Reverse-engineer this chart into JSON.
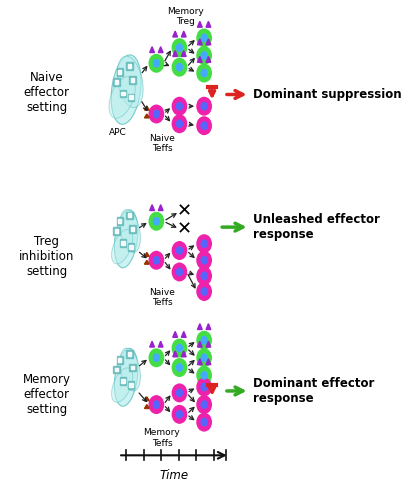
{
  "fig_width": 4.06,
  "fig_height": 4.87,
  "dpi": 100,
  "bg_color": "#ffffff",
  "panel_labels": [
    "Naive\neffector\nsetting",
    "Treg\ninhibition\nsetting",
    "Memory\neffector\nsetting"
  ],
  "outcome_labels": [
    "Dominant suppression",
    "Unleashed effector\nresponse",
    "Dominant effector\nresponse"
  ],
  "outcome_arrow_colors": [
    "#dd2222",
    "#33aa22",
    "#33aa22"
  ],
  "treg_color": "#44dd44",
  "treg_inner_color": "#44aaff",
  "teff_color": "#ee22aa",
  "teff_inner_color": "#5566ff",
  "teff_marker_color": "#993300",
  "apc_color": "#bbeeee",
  "apc_border": "#55bbbb",
  "small_marker_color": "#9922cc",
  "arrow_color": "#222222",
  "inhibit_color": "#dd2222",
  "green_arrow_color": "#33aa22",
  "time_arrow_color": "#111111",
  "label_fontsize": 8.5,
  "small_fontsize": 6.5,
  "outcome_fontsize": 8.5
}
